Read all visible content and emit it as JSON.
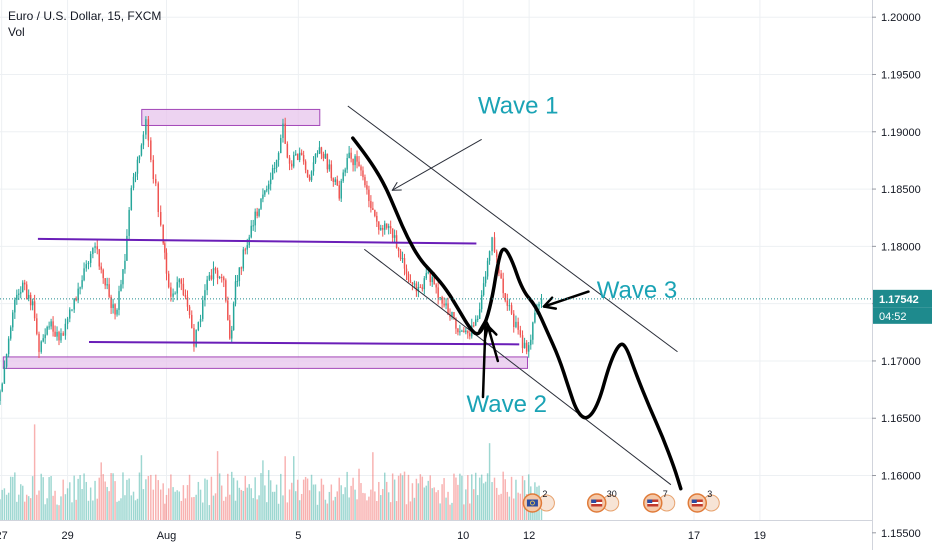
{
  "header": {
    "symbol_line": "Euro / U.S. Dollar, 15, FXCM",
    "volume_label": "Vol"
  },
  "chart_data": {
    "type": "candlestick",
    "symbol": "Euro / U.S. Dollar",
    "interval": "15",
    "source": "FXCM",
    "y_ticks": [
      "1.20000",
      "1.19500",
      "1.19000",
      "1.18500",
      "1.18000",
      "1.17500",
      "1.17000",
      "1.16500",
      "1.16000",
      "1.15500"
    ],
    "y_range": [
      1.1535,
      1.2015
    ],
    "x_ticks": [
      {
        "label": "27",
        "day": 27
      },
      {
        "label": "29",
        "day": 29
      },
      {
        "label": "Aug",
        "day": 32
      },
      {
        "label": "5",
        "day": 36
      },
      {
        "label": "10",
        "day": 41
      },
      {
        "label": "12",
        "day": 43
      },
      {
        "label": "17",
        "day": 48
      },
      {
        "label": "19",
        "day": 50
      }
    ],
    "x_range": [
      26.95,
      53.4
    ],
    "current_price": "1.17542",
    "current_price_value": 1.17542,
    "countdown": "04:52",
    "price_path": [
      [
        26.95,
        1.1665
      ],
      [
        27.15,
        1.1695
      ],
      [
        27.4,
        1.1745
      ],
      [
        27.7,
        1.1765
      ],
      [
        28.0,
        1.1748
      ],
      [
        28.2,
        1.1712
      ],
      [
        28.5,
        1.1735
      ],
      [
        28.8,
        1.1718
      ],
      [
        29.0,
        1.173
      ],
      [
        29.2,
        1.1745
      ],
      [
        29.5,
        1.1775
      ],
      [
        29.9,
        1.1798
      ],
      [
        30.2,
        1.1768
      ],
      [
        30.5,
        1.174
      ],
      [
        30.8,
        1.179
      ],
      [
        31.0,
        1.1848
      ],
      [
        31.3,
        1.1888
      ],
      [
        31.45,
        1.1908
      ],
      [
        31.6,
        1.187
      ],
      [
        31.75,
        1.185
      ],
      [
        31.9,
        1.1818
      ],
      [
        32.0,
        1.179
      ],
      [
        32.2,
        1.1755
      ],
      [
        32.45,
        1.1768
      ],
      [
        32.7,
        1.1748
      ],
      [
        32.9,
        1.1715
      ],
      [
        33.1,
        1.1742
      ],
      [
        33.3,
        1.1768
      ],
      [
        33.55,
        1.178
      ],
      [
        33.8,
        1.177
      ],
      [
        33.98,
        1.1715
      ],
      [
        34.15,
        1.1765
      ],
      [
        34.45,
        1.18
      ],
      [
        34.75,
        1.1825
      ],
      [
        35.1,
        1.1848
      ],
      [
        35.4,
        1.1875
      ],
      [
        35.6,
        1.1903
      ],
      [
        35.8,
        1.1872
      ],
      [
        36.1,
        1.188
      ],
      [
        36.4,
        1.1862
      ],
      [
        36.7,
        1.189
      ],
      [
        37.0,
        1.1868
      ],
      [
        37.3,
        1.1845
      ],
      [
        37.6,
        1.188
      ],
      [
        37.9,
        1.187
      ],
      [
        38.2,
        1.1838
      ],
      [
        38.5,
        1.1815
      ],
      [
        38.8,
        1.1822
      ],
      [
        39.1,
        1.1795
      ],
      [
        39.4,
        1.177
      ],
      [
        39.7,
        1.1762
      ],
      [
        40.0,
        1.1774
      ],
      [
        40.3,
        1.176
      ],
      [
        40.6,
        1.1745
      ],
      [
        40.9,
        1.173
      ],
      [
        41.2,
        1.172
      ],
      [
        41.5,
        1.1735
      ],
      [
        41.8,
        1.179
      ],
      [
        41.95,
        1.1806
      ],
      [
        42.15,
        1.1775
      ],
      [
        42.4,
        1.1748
      ],
      [
        42.6,
        1.1735
      ],
      [
        42.8,
        1.1718
      ],
      [
        43.05,
        1.1712
      ],
      [
        43.3,
        1.1745
      ],
      [
        43.45,
        1.17542
      ]
    ],
    "volume_range": [
      0,
      160
    ],
    "horizontal_levels": [
      {
        "name": "upper-trendline",
        "from": [
          28.1,
          1.18065
        ],
        "to": [
          41.4,
          1.18025
        ],
        "color": "#6a1eb8"
      },
      {
        "name": "lower-support-line",
        "from": [
          29.65,
          1.17165
        ],
        "to": [
          42.7,
          1.17145
        ],
        "color": "#6a1eb8"
      }
    ],
    "zones": [
      {
        "name": "resistance-zone",
        "from": [
          31.25,
          1.19055
        ],
        "to": [
          36.65,
          1.19195
        ],
        "fill": "#e7c4ec",
        "stroke": "#a347b8"
      },
      {
        "name": "support-zone",
        "from": [
          27.05,
          1.16935
        ],
        "to": [
          42.95,
          1.17035
        ],
        "fill": "#e7c4ec",
        "stroke": "#a347b8"
      }
    ],
    "channel_lines": [
      {
        "name": "channel-upper-line",
        "from": [
          37.5,
          1.19225
        ],
        "to": [
          47.5,
          1.1708
        ]
      },
      {
        "name": "channel-lower-line",
        "from": [
          38.0,
          1.17975
        ],
        "to": [
          47.3,
          1.1592
        ]
      }
    ],
    "forecast_path": [
      [
        37.65,
        1.18945
      ],
      [
        38.1,
        1.1878
      ],
      [
        38.6,
        1.1855
      ],
      [
        39.0,
        1.1828
      ],
      [
        39.3,
        1.1808
      ],
      [
        39.7,
        1.1788
      ],
      [
        40.1,
        1.1776
      ],
      [
        40.5,
        1.1762
      ],
      [
        40.9,
        1.1743
      ],
      [
        41.2,
        1.17285
      ],
      [
        41.45,
        1.17215
      ],
      [
        41.7,
        1.17345
      ],
      [
        41.9,
        1.1758
      ],
      [
        42.05,
        1.1785
      ],
      [
        42.2,
        1.18005
      ],
      [
        42.45,
        1.17905
      ],
      [
        42.8,
        1.17615
      ],
      [
        43.2,
        1.1748
      ],
      [
        43.55,
        1.17255
      ],
      [
        43.9,
        1.1703
      ],
      [
        44.2,
        1.16765
      ],
      [
        44.45,
        1.16555
      ],
      [
        44.75,
        1.1648
      ],
      [
        45.1,
        1.1662
      ],
      [
        45.45,
        1.16985
      ],
      [
        45.75,
        1.1716
      ],
      [
        45.95,
        1.17125
      ],
      [
        46.25,
        1.1688
      ],
      [
        46.65,
        1.16595
      ],
      [
        47.05,
        1.16335
      ],
      [
        47.4,
        1.1607
      ],
      [
        47.6,
        1.15885
      ]
    ],
    "annotations": [
      {
        "text": "Wave 1",
        "at": [
          41.45,
          1.1916
        ]
      },
      {
        "text": "Wave 3",
        "at": [
          45.05,
          1.1755
        ]
      },
      {
        "text": "Wave 2",
        "at": [
          41.1,
          1.16555
        ]
      }
    ],
    "arrows": [
      {
        "name": "wave-1-arrow",
        "from": [
          41.55,
          1.18932
        ],
        "to": [
          38.85,
          1.1849
        ]
      },
      {
        "name": "wave-3-arrow",
        "from": [
          44.8,
          1.17605
        ],
        "to": [
          43.45,
          1.17475
        ]
      },
      {
        "name": "wave-2-arrow",
        "from": [
          41.6,
          1.16685
        ],
        "to": [
          41.68,
          1.17355
        ]
      },
      {
        "name": "wave-2-second-arrow",
        "from": [
          42.05,
          1.17
        ],
        "to": [
          41.75,
          1.17305
        ]
      }
    ],
    "event_badges": [
      {
        "label": "2",
        "day": 43.1,
        "flag": "eu"
      },
      {
        "label": "30",
        "day": 45.05,
        "flag": "us"
      },
      {
        "label": "7",
        "day": 46.75,
        "flag": "us"
      },
      {
        "label": "3",
        "day": 48.1,
        "flag": "us"
      }
    ],
    "grid": true
  },
  "colors": {
    "up": "#26a69a",
    "down": "#ef5350",
    "current_price": "#1e8a8d",
    "annotation": "#1aa3b5",
    "text": "#131722",
    "grid": "#edf0f3"
  }
}
